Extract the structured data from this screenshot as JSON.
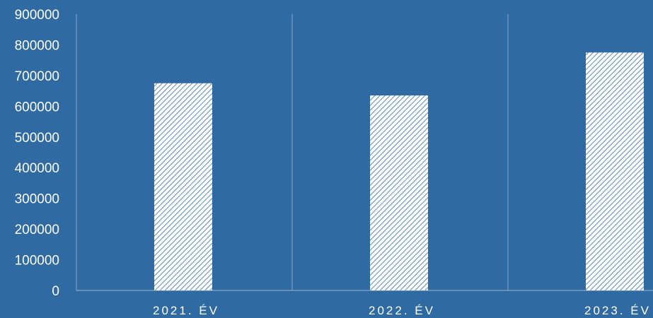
{
  "chart_data": {
    "type": "bar",
    "categories": [
      "2021. ÉV",
      "2022. ÉV",
      "2023. ÉV"
    ],
    "values": [
      675000,
      635000,
      775000
    ],
    "ylim": [
      0,
      900000
    ],
    "yticks": [
      0,
      100000,
      200000,
      300000,
      400000,
      500000,
      600000,
      700000,
      800000,
      900000
    ],
    "grid": false,
    "legend": "none",
    "colors": {
      "background": "#2f6aa3",
      "bar": "#ffffff",
      "bar_hatch": "#2f6aa3",
      "text": "#ffffff",
      "axis": "#c9d8e8"
    }
  }
}
